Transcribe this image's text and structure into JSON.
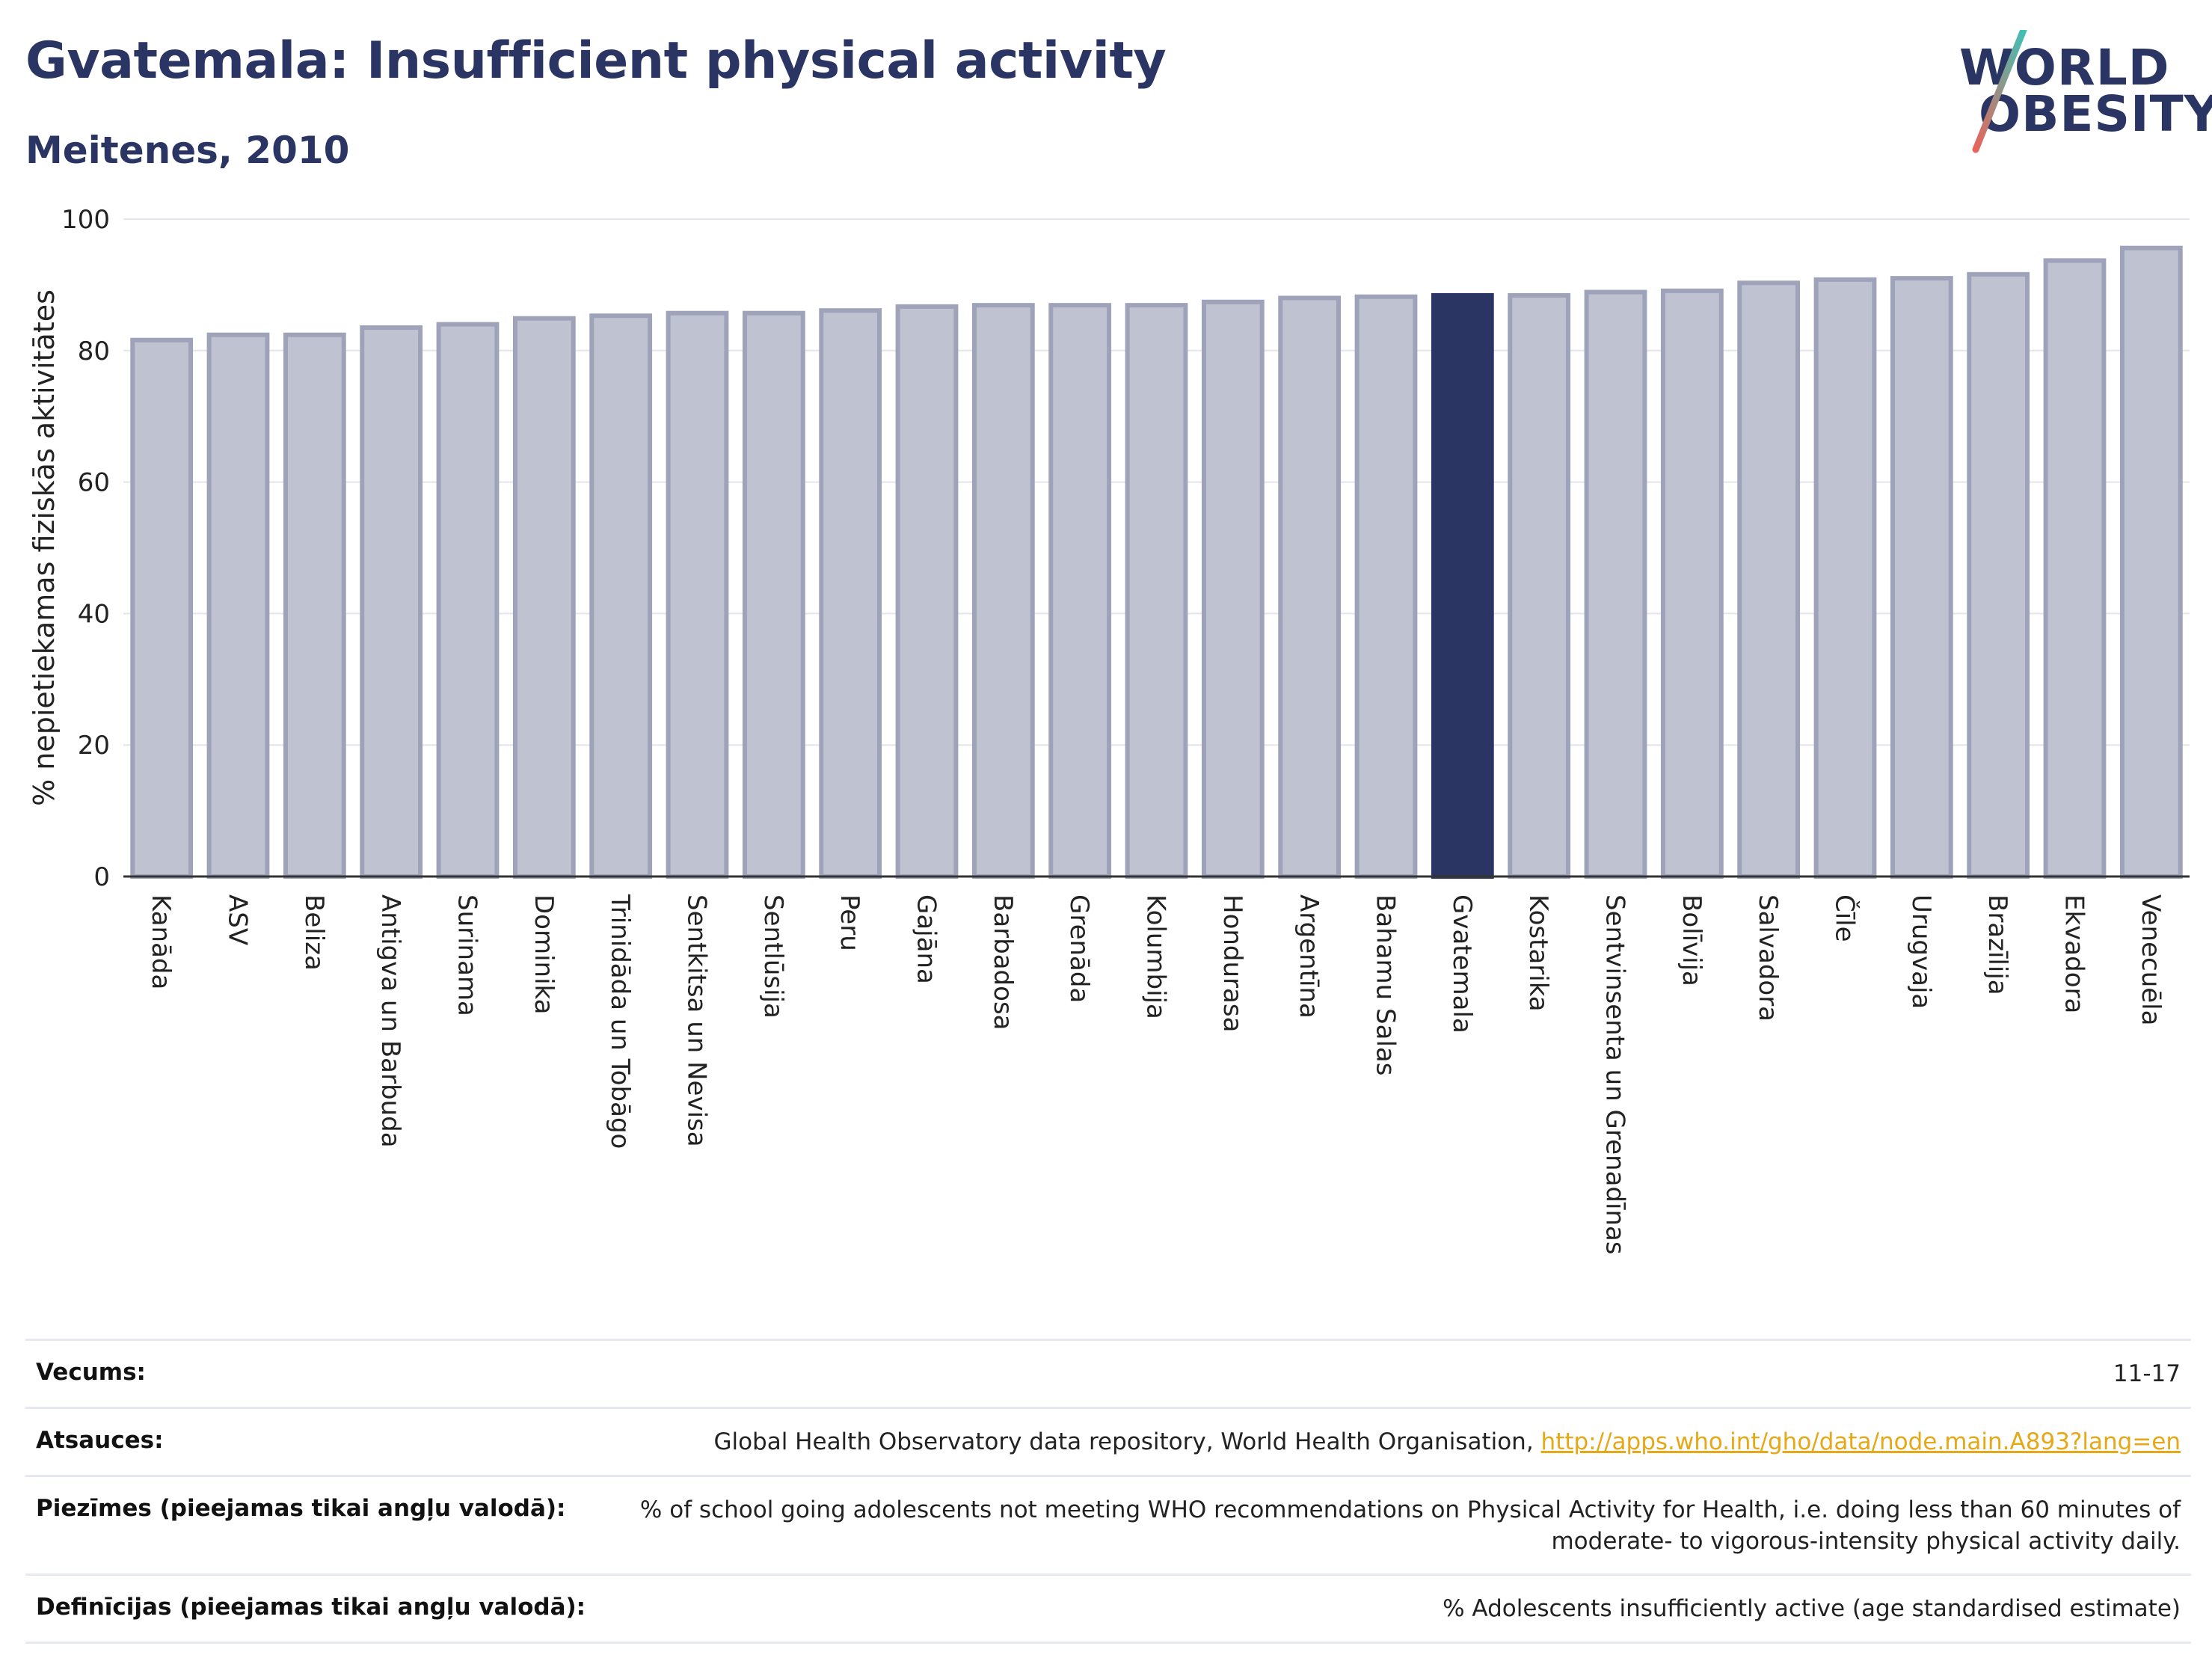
{
  "header": {
    "title": "Gvatemala: Insufficient physical activity",
    "subtitle": "Meitenes, 2010"
  },
  "logo": {
    "line1": "WORLD",
    "line2": "OBESITY"
  },
  "colors": {
    "bar": "#bfc3d1",
    "bar_border": "#9ea3ba",
    "highlight": "#2b3563",
    "title": "#2b3563",
    "link": "#e6a817"
  },
  "chart_data": {
    "type": "bar",
    "ylabel": "% nepietiekamas fiziskās aktivitātes",
    "ylim": [
      0,
      100
    ],
    "yticks": [
      0,
      20,
      40,
      60,
      80,
      100
    ],
    "grid": true,
    "highlight": "Gvatemala",
    "categories": [
      "Kanāda",
      "ASV",
      "Beliza",
      "Antigva un Barbuda",
      "Surinama",
      "Dominika",
      "Trinidāda un Tobāgo",
      "Sentkitsa un Nevisa",
      "Sentlūsija",
      "Peru",
      "Gajāna",
      "Barbadosa",
      "Grenāda",
      "Kolumbija",
      "Hondurasa",
      "Argentīna",
      "Bahamu Salas",
      "Gvatemala",
      "Kostarika",
      "Sentvinsenta un Grenadīnas",
      "Bolīvija",
      "Salvadora",
      "Čīle",
      "Urugvaja",
      "Brazīlija",
      "Ekvadora",
      "Venecuēla"
    ],
    "values": [
      81.6,
      82.4,
      82.4,
      83.5,
      84.0,
      84.9,
      85.3,
      85.7,
      85.7,
      86.1,
      86.7,
      86.9,
      86.9,
      86.9,
      87.4,
      88.0,
      88.2,
      88.4,
      88.4,
      88.9,
      89.1,
      90.3,
      90.8,
      91.0,
      91.6,
      93.7,
      95.6
    ]
  },
  "meta": {
    "age_label": "Vecums:",
    "age_value": "11-17",
    "refs_label": "Atsauces:",
    "refs_text": "Global Health Observatory data repository, World Health Organisation, ",
    "refs_link": "http://apps.who.int/gho/data/node.main.A893?lang=en",
    "notes_label": "Piezīmes (pieejamas tikai angļu valodā):",
    "notes_value": "% of school going adolescents not meeting WHO recommendations on Physical Activity for Health, i.e. doing less than 60 minutes of moderate- to vigorous-intensity physical activity daily.",
    "defs_label": "Definīcijas (pieejamas tikai angļu valodā):",
    "defs_value": "% Adolescents insufficiently active (age standardised estimate)"
  }
}
